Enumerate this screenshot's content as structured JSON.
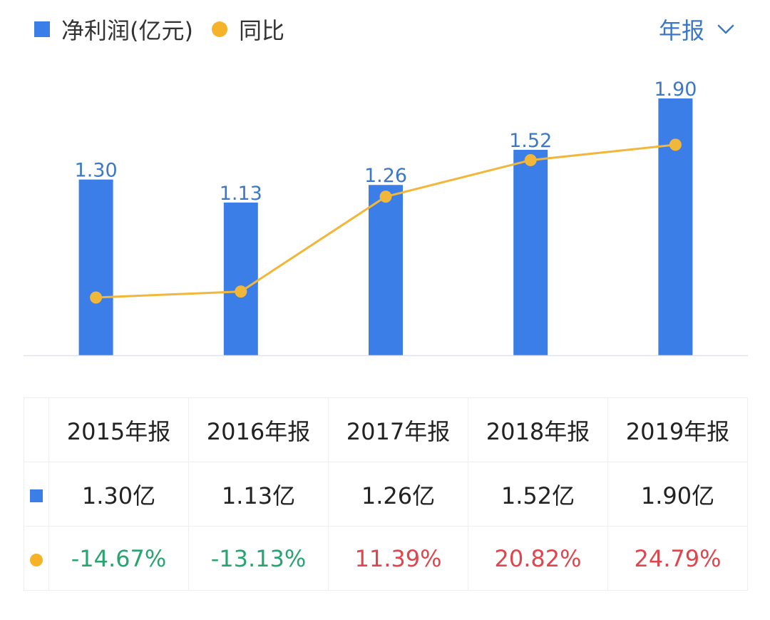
{
  "legend": {
    "bar_label": "净利润(亿元)",
    "line_label": "同比"
  },
  "period_selector": {
    "label": "年报"
  },
  "colors": {
    "bar": "#3b7ee8",
    "line": "#f0b73b",
    "negative": "#27a470",
    "positive": "#e0454d",
    "period": "#3d78c4"
  },
  "chart_data": {
    "type": "bar+line",
    "categories": [
      "2015年报",
      "2016年报",
      "2017年报",
      "2018年报",
      "2019年报"
    ],
    "series": [
      {
        "name": "净利润(亿元)",
        "type": "bar",
        "values": [
          1.3,
          1.13,
          1.26,
          1.52,
          1.9
        ],
        "labels": [
          "1.30",
          "1.13",
          "1.26",
          "1.52",
          "1.90"
        ]
      },
      {
        "name": "同比",
        "type": "line",
        "values": [
          -14.67,
          -13.13,
          11.39,
          20.82,
          24.79
        ]
      }
    ]
  },
  "table": {
    "headers": [
      "2015年报",
      "2016年报",
      "2017年报",
      "2018年报",
      "2019年报"
    ],
    "profit_row": [
      "1.30亿",
      "1.13亿",
      "1.26亿",
      "1.52亿",
      "1.90亿"
    ],
    "yoy_row": [
      "-14.67%",
      "-13.13%",
      "11.39%",
      "20.82%",
      "24.79%"
    ],
    "yoy_sign": [
      "neg",
      "neg",
      "pos",
      "pos",
      "pos"
    ]
  }
}
